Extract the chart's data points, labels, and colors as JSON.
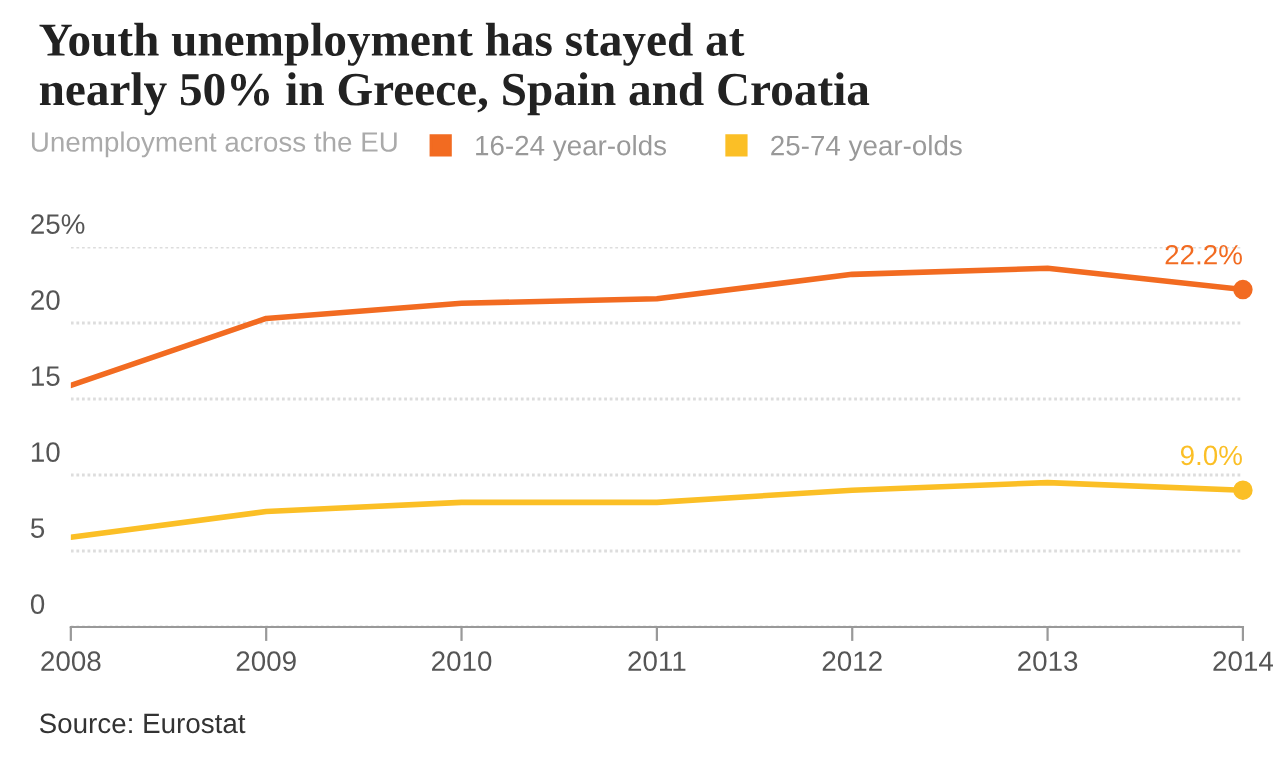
{
  "chart_data": {
    "type": "line",
    "title": "Youth unemployment has stayed at\nnearly 50% in Greece, Spain and Croatia",
    "legend_title": "Unemployment across the EU",
    "x": [
      2008,
      2009,
      2010,
      2011,
      2012,
      2013,
      2014
    ],
    "series": [
      {
        "name": "16-24 year-olds",
        "color": "#f26b21",
        "values": [
          15.9,
          20.3,
          21.3,
          21.6,
          23.2,
          23.6,
          22.2
        ],
        "value_labels": [
          null,
          null,
          null,
          null,
          null,
          null,
          "22.2%"
        ]
      },
      {
        "name": "25-74 year-olds",
        "color": "#fbbf26",
        "values": [
          5.9,
          7.6,
          8.2,
          8.2,
          9.0,
          9.5,
          9.0
        ],
        "value_labels": [
          null,
          null,
          null,
          null,
          null,
          null,
          "9.0%"
        ]
      }
    ],
    "xlim": [
      2008,
      2014
    ],
    "xticks": [
      2008,
      2009,
      2010,
      2011,
      2012,
      2013,
      2014
    ],
    "ylim": [
      0,
      25
    ],
    "yticks": [
      0,
      5,
      10,
      15,
      20,
      {
        "value": 25,
        "label": "25%"
      }
    ],
    "grid": "y",
    "legend": "top left",
    "annotations": [
      "Source: Eurostat"
    ]
  }
}
